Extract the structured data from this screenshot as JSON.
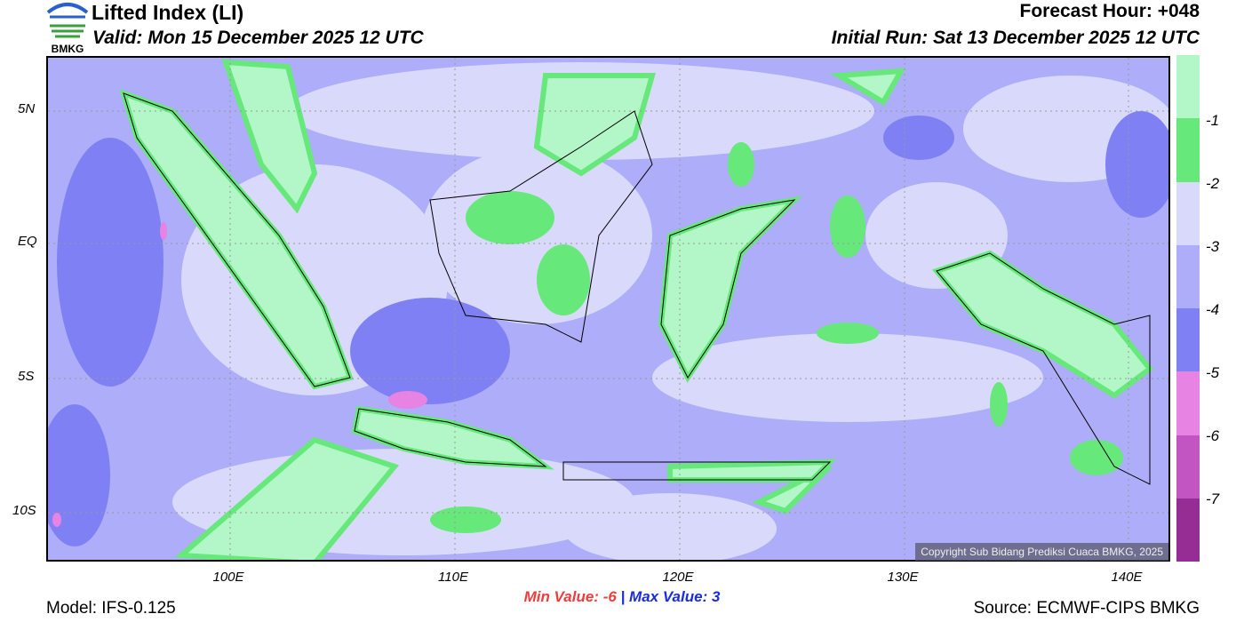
{
  "header": {
    "title": "Lifted Index (LI)",
    "valid": "Valid: Mon 15 December 2025 12 UTC",
    "forecast_hour": "Forecast Hour: +048",
    "initial_run": "Initial Run: Sat 13 December 2025 12 UTC",
    "logo_text": "BMKG"
  },
  "axes": {
    "lat_labels": [
      "5N",
      "EQ",
      "5S",
      "10S"
    ],
    "lon_labels": [
      "100E",
      "110E",
      "120E",
      "130E",
      "140E"
    ]
  },
  "colorbar": {
    "colors": [
      "#B3F7C9",
      "#66E87A",
      "#D9D9FB",
      "#ADADF9",
      "#8080F5",
      "#E683E3",
      "#C255C2",
      "#952D95"
    ],
    "labels": [
      "-1",
      "-2",
      "-3",
      "-4",
      "-5",
      "-6",
      "-7"
    ]
  },
  "footer": {
    "min_label": "Min Value:",
    "min_value": "-6",
    "separator": "|",
    "max_label": "Max Value:",
    "max_value": "3",
    "model": "Model: IFS-0.125",
    "source": "Source: ECMWF-CIPS BMKG",
    "copyright": "Copyright Sub Bidang Prediksi Cuaca BMKG, 2025"
  }
}
